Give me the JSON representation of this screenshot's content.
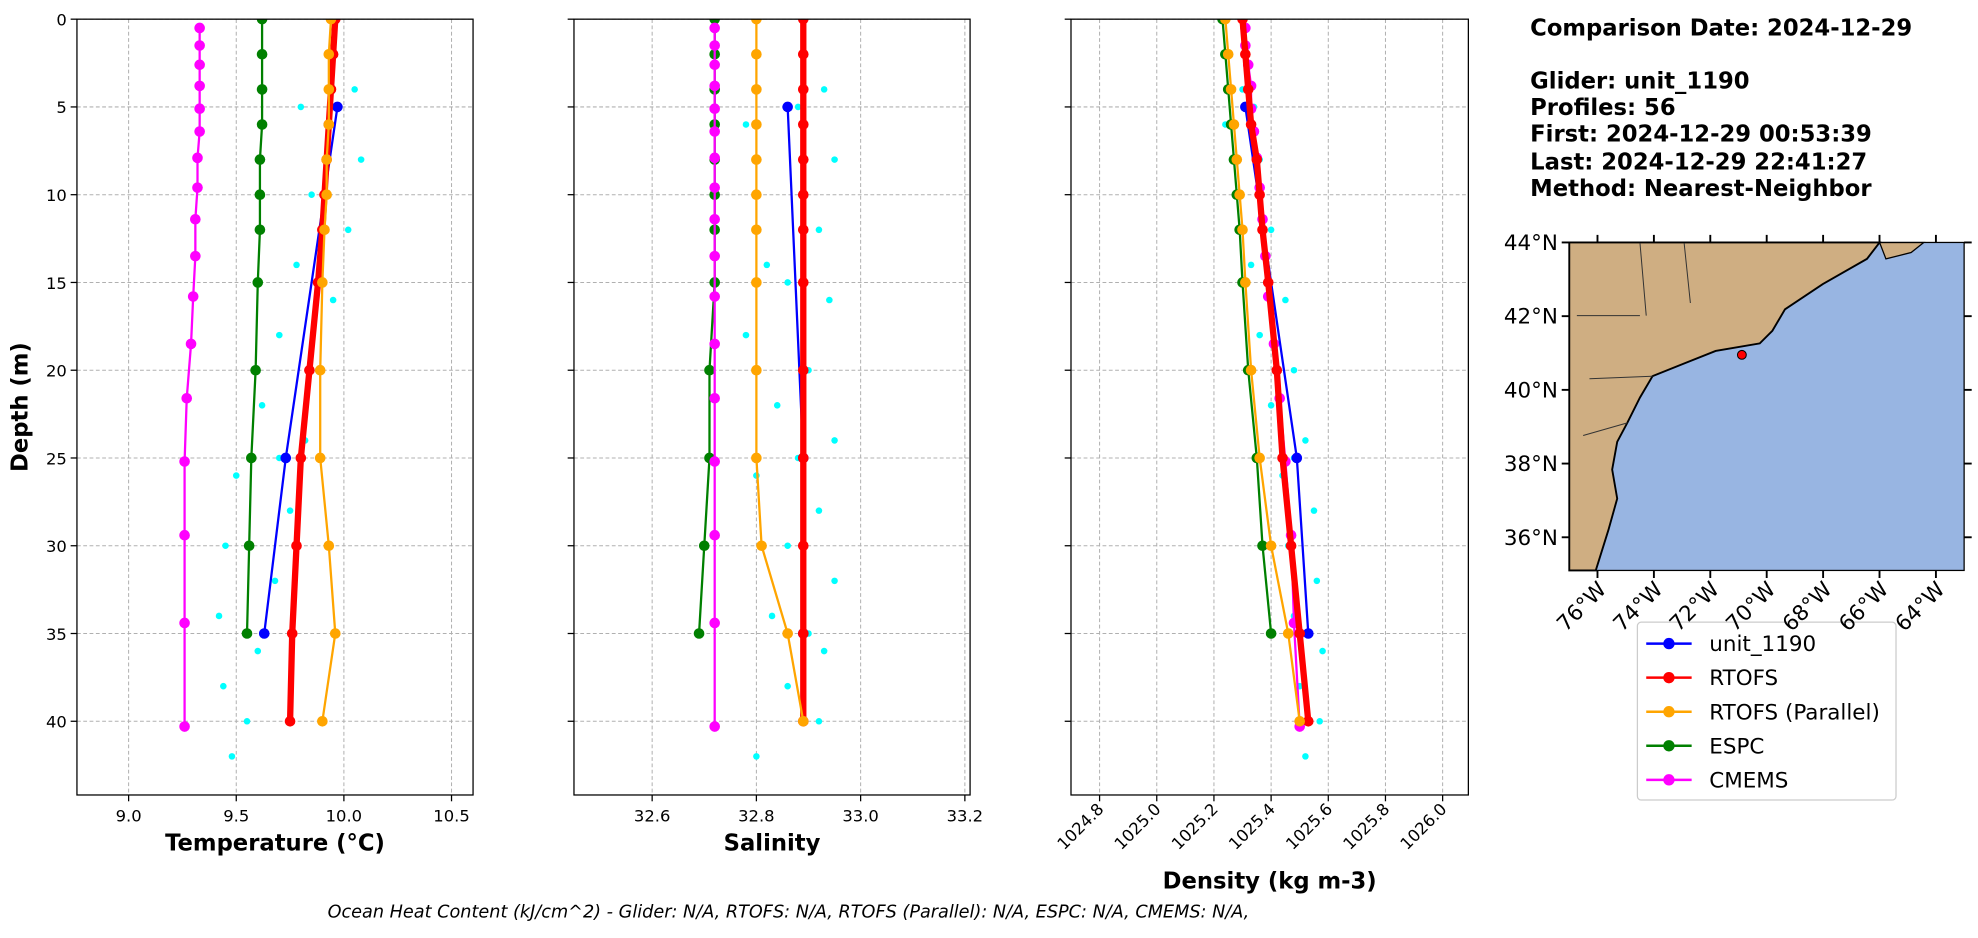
{
  "info": {
    "title": "Comparison Date: 2024-12-29",
    "lines": [
      "Glider: unit_1190",
      "Profiles: 56",
      "First: 2024-12-29 00:53:39",
      "Last: 2024-12-29 22:41:27",
      "Method: Nearest-Neighbor"
    ]
  },
  "footer": "Ocean Heat Content (kJ/cm^2) - Glider: N/A,  RTOFS: N/A,  RTOFS (Parallel): N/A,  ESPC: N/A,  CMEMS: N/A,",
  "chart_data": [
    {
      "type": "line",
      "xlabel": "Temperature (°C)",
      "ylabel": "Depth (m)",
      "grid": true,
      "xlim": [
        8.76,
        10.6
      ],
      "xticks": [
        {
          "value": 9,
          "label": "9.0"
        },
        9.5,
        {
          "value": 10,
          "label": "10.0"
        },
        10.5
      ],
      "ylim": [
        44.2,
        0
      ],
      "yticks": [
        0,
        5,
        10,
        15,
        20,
        25,
        30,
        35,
        40
      ],
      "series": [
        {
          "style": "scatter",
          "color": "#00ffff",
          "y": [
            4,
            6,
            8,
            10,
            12,
            14,
            16,
            18,
            20,
            22,
            24,
            26,
            28,
            30,
            32,
            34,
            36,
            38,
            40,
            42,
            5,
            15,
            25,
            35
          ],
          "values": [
            10.05,
            9.92,
            10.08,
            9.85,
            10.02,
            9.78,
            9.95,
            9.7,
            9.88,
            9.62,
            9.82,
            9.5,
            9.75,
            9.45,
            9.68,
            9.42,
            9.6,
            9.44,
            9.55,
            9.48,
            9.8,
            9.88,
            9.7,
            9.55
          ]
        },
        {
          "name": "ESPC",
          "color": "#008000",
          "y": [
            0,
            2,
            4,
            6,
            8,
            10,
            12,
            15,
            20,
            25,
            30,
            35
          ],
          "values": [
            9.62,
            9.62,
            9.62,
            9.62,
            9.61,
            9.61,
            9.61,
            9.6,
            9.59,
            9.57,
            9.56,
            9.55
          ]
        },
        {
          "name": "CMEMS",
          "color": "#ff00ff",
          "y": [
            0.5,
            1.5,
            2.6,
            3.8,
            5.1,
            6.4,
            7.9,
            9.6,
            11.4,
            13.5,
            15.8,
            18.5,
            21.6,
            25.2,
            29.4,
            34.4,
            40.3
          ],
          "values": [
            9.33,
            9.33,
            9.33,
            9.33,
            9.33,
            9.33,
            9.32,
            9.32,
            9.31,
            9.31,
            9.3,
            9.29,
            9.27,
            9.26,
            9.26,
            9.26,
            9.26
          ]
        },
        {
          "name": "unit_1190",
          "color": "#0000ff",
          "y": [
            5,
            25,
            35
          ],
          "values": [
            9.97,
            9.73,
            9.63
          ]
        },
        {
          "name": "RTOFS",
          "color": "#ff0000",
          "linewidth": 5,
          "y": [
            0,
            2,
            4,
            6,
            8,
            10,
            12,
            15,
            20,
            25,
            30,
            35,
            40
          ],
          "values": [
            9.96,
            9.95,
            9.94,
            9.93,
            9.92,
            9.91,
            9.9,
            9.88,
            9.84,
            9.8,
            9.78,
            9.76,
            9.75
          ]
        },
        {
          "name": "RTOFS (Parallel)",
          "color": "#ffa500",
          "y": [
            0,
            2,
            4,
            6,
            8,
            10,
            12,
            15,
            20,
            25,
            30,
            35,
            40
          ],
          "values": [
            9.94,
            9.93,
            9.93,
            9.93,
            9.92,
            9.92,
            9.91,
            9.9,
            9.89,
            9.89,
            9.93,
            9.96,
            9.9
          ]
        }
      ]
    },
    {
      "type": "line",
      "xlabel": "Salinity",
      "grid": true,
      "xlim": [
        32.45,
        33.21
      ],
      "xticks": [
        32.6,
        32.8,
        {
          "value": 33,
          "label": "33.0"
        },
        33.2
      ],
      "ylim": [
        44.2,
        0
      ],
      "yticks": [
        0,
        5,
        10,
        15,
        20,
        25,
        30,
        35,
        40
      ],
      "series": [
        {
          "style": "scatter",
          "color": "#00ffff",
          "y": [
            4,
            6,
            8,
            10,
            12,
            14,
            16,
            18,
            20,
            22,
            24,
            26,
            28,
            30,
            32,
            34,
            36,
            38,
            40,
            42,
            5,
            15,
            25,
            35
          ],
          "values": [
            32.93,
            32.78,
            32.95,
            32.8,
            32.92,
            32.82,
            32.94,
            32.78,
            32.9,
            32.84,
            32.95,
            32.8,
            32.92,
            32.86,
            32.95,
            32.83,
            32.93,
            32.86,
            32.92,
            32.8,
            32.88,
            32.86,
            32.88,
            32.9
          ]
        },
        {
          "color": "#008000",
          "y": [
            0,
            2,
            4,
            6,
            8,
            10,
            12,
            15,
            20,
            25,
            30,
            35
          ],
          "values": [
            32.72,
            32.72,
            32.72,
            32.72,
            32.72,
            32.72,
            32.72,
            32.72,
            32.71,
            32.71,
            32.7,
            32.69
          ]
        },
        {
          "color": "#ff00ff",
          "y": [
            0.5,
            1.5,
            2.6,
            3.8,
            5.1,
            6.4,
            7.9,
            9.6,
            11.4,
            13.5,
            15.8,
            18.5,
            21.6,
            25.2,
            29.4,
            34.4,
            40.3
          ],
          "values": [
            32.72,
            32.72,
            32.72,
            32.72,
            32.72,
            32.72,
            32.72,
            32.72,
            32.72,
            32.72,
            32.72,
            32.72,
            32.72,
            32.72,
            32.72,
            32.72,
            32.72
          ]
        },
        {
          "color": "#0000ff",
          "y": [
            5,
            25,
            35
          ],
          "values": [
            32.86,
            32.89,
            32.89
          ]
        },
        {
          "color": "#ff0000",
          "linewidth": 5,
          "y": [
            0,
            2,
            4,
            6,
            8,
            10,
            12,
            15,
            20,
            25,
            30,
            35,
            40
          ],
          "values": [
            32.89,
            32.89,
            32.89,
            32.89,
            32.89,
            32.89,
            32.89,
            32.89,
            32.89,
            32.89,
            32.89,
            32.89,
            32.89
          ]
        },
        {
          "color": "#ffa500",
          "y": [
            0,
            2,
            4,
            6,
            8,
            10,
            12,
            15,
            20,
            25,
            30,
            35,
            40
          ],
          "values": [
            32.8,
            32.8,
            32.8,
            32.8,
            32.8,
            32.8,
            32.8,
            32.8,
            32.8,
            32.8,
            32.81,
            32.86,
            32.89
          ]
        }
      ]
    },
    {
      "type": "line",
      "xlabel": "Density (kg m-3)",
      "grid": true,
      "xtick_rotation": -45,
      "xlim": [
        1024.7,
        1026.09
      ],
      "xticks": [
        1024.8,
        {
          "value": 1025,
          "label": "1025.0"
        },
        1025.2,
        1025.4,
        1025.6,
        1025.8,
        {
          "value": 1026,
          "label": "1026.0"
        }
      ],
      "ylim": [
        44.2,
        0
      ],
      "yticks": [
        0,
        5,
        10,
        15,
        20,
        25,
        30,
        35,
        40
      ],
      "series": [
        {
          "style": "scatter",
          "color": "#00ffff",
          "y": [
            4,
            6,
            8,
            10,
            12,
            14,
            16,
            18,
            20,
            22,
            24,
            26,
            28,
            30,
            32,
            34,
            36,
            38,
            40,
            42,
            5,
            15,
            25,
            35
          ],
          "values": [
            1025.3,
            1025.24,
            1025.36,
            1025.28,
            1025.4,
            1025.33,
            1025.45,
            1025.36,
            1025.48,
            1025.4,
            1025.52,
            1025.44,
            1025.55,
            1025.46,
            1025.56,
            1025.48,
            1025.58,
            1025.5,
            1025.57,
            1025.52,
            1025.34,
            1025.39,
            1025.48,
            1025.52
          ]
        },
        {
          "color": "#008000",
          "y": [
            0,
            2,
            4,
            6,
            8,
            10,
            12,
            15,
            20,
            25,
            30,
            35
          ],
          "values": [
            1025.23,
            1025.24,
            1025.25,
            1025.26,
            1025.27,
            1025.28,
            1025.29,
            1025.3,
            1025.32,
            1025.35,
            1025.37,
            1025.4
          ]
        },
        {
          "color": "#ff00ff",
          "y": [
            0.5,
            1.5,
            2.6,
            3.8,
            5.1,
            6.4,
            7.9,
            9.6,
            11.4,
            13.5,
            15.8,
            18.5,
            21.6,
            25.2,
            29.4,
            34.4,
            40.3
          ],
          "values": [
            1025.31,
            1025.31,
            1025.32,
            1025.33,
            1025.33,
            1025.34,
            1025.35,
            1025.36,
            1025.37,
            1025.38,
            1025.39,
            1025.41,
            1025.43,
            1025.45,
            1025.47,
            1025.48,
            1025.5
          ]
        },
        {
          "color": "#0000ff",
          "y": [
            5,
            25,
            35
          ],
          "values": [
            1025.31,
            1025.49,
            1025.53
          ]
        },
        {
          "color": "#ff0000",
          "linewidth": 5,
          "y": [
            0,
            2,
            4,
            6,
            8,
            10,
            12,
            15,
            20,
            25,
            30,
            35,
            40
          ],
          "values": [
            1025.3,
            1025.31,
            1025.32,
            1025.33,
            1025.35,
            1025.36,
            1025.37,
            1025.39,
            1025.42,
            1025.44,
            1025.47,
            1025.5,
            1025.53
          ]
        },
        {
          "color": "#ffa500",
          "y": [
            0,
            2,
            4,
            6,
            8,
            10,
            12,
            15,
            20,
            25,
            30,
            35,
            40
          ],
          "values": [
            1025.24,
            1025.25,
            1025.26,
            1025.27,
            1025.28,
            1025.29,
            1025.3,
            1025.31,
            1025.33,
            1025.36,
            1025.4,
            1025.46,
            1025.5
          ]
        }
      ]
    },
    {
      "type": "map",
      "xlim": [
        -77,
        -63
      ],
      "ylim": [
        35.1,
        44
      ],
      "xticks": [
        {
          "value": -76,
          "label": "76°W"
        },
        {
          "value": -74,
          "label": "74°W"
        },
        {
          "value": -72,
          "label": "72°W"
        },
        {
          "value": -70,
          "label": "70°W"
        },
        {
          "value": -68,
          "label": "68°W"
        },
        {
          "value": -66,
          "label": "66°W"
        },
        {
          "value": -64,
          "label": "64°W"
        }
      ],
      "yticks": [
        {
          "value": 36,
          "label": "36°N"
        },
        {
          "value": 38,
          "label": "38°N"
        },
        {
          "value": 40,
          "label": "40°N"
        },
        {
          "value": 42,
          "label": "42°N"
        },
        {
          "value": 44,
          "label": "44°N"
        }
      ],
      "points": {
        "lon": [
          -70.88
        ],
        "lat": [
          40.95
        ],
        "color": "#ff0000"
      }
    }
  ]
}
